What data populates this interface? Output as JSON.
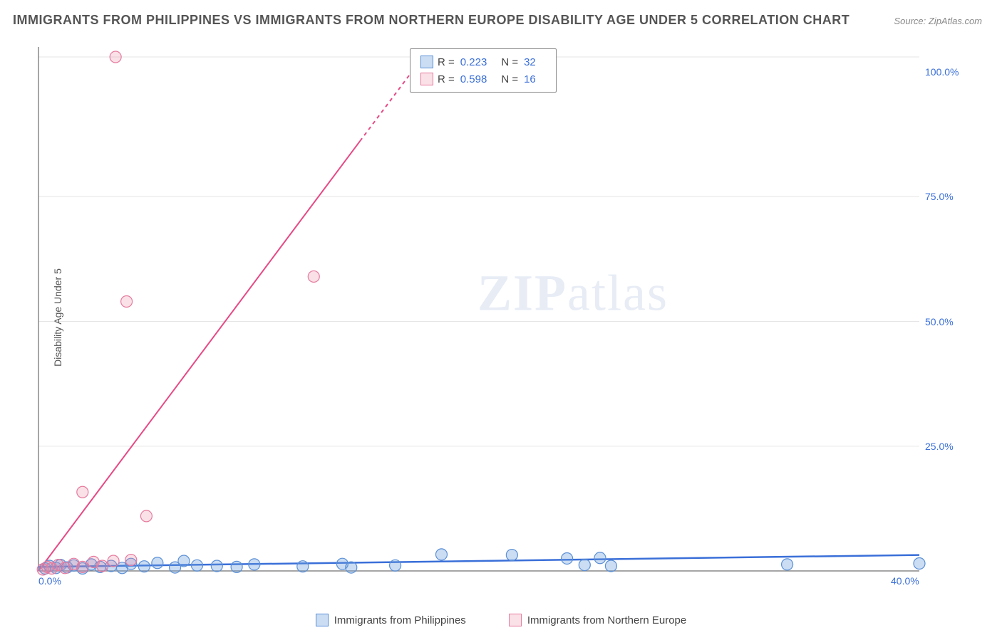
{
  "title": "IMMIGRANTS FROM PHILIPPINES VS IMMIGRANTS FROM NORTHERN EUROPE DISABILITY AGE UNDER 5 CORRELATION CHART",
  "source": "Source: ZipAtlas.com",
  "y_axis_label": "Disability Age Under 5",
  "watermark": {
    "bold": "ZIP",
    "rest": "atlas"
  },
  "chart": {
    "type": "scatter",
    "background_color": "#ffffff",
    "grid_color": "#e5e5e5",
    "axis_line_color": "#888888",
    "xlim": [
      0,
      40
    ],
    "ylim": [
      0,
      105
    ],
    "x_ticks": [
      {
        "value": 0,
        "label": "0.0%"
      },
      {
        "value": 40,
        "label": "40.0%"
      }
    ],
    "y_ticks": [
      {
        "value": 25,
        "label": "25.0%"
      },
      {
        "value": 50,
        "label": "50.0%"
      },
      {
        "value": 75,
        "label": "75.0%"
      },
      {
        "value": 100,
        "label": "100.0%"
      }
    ],
    "y_gridlines": [
      25,
      50,
      75,
      103
    ],
    "series": [
      {
        "name": "Immigrants from Philippines",
        "color_fill": "rgba(106,158,220,0.35)",
        "color_stroke": "#5a8fd6",
        "marker_radius": 8,
        "regression": {
          "slope": 0.06,
          "intercept": 0.8,
          "x0": 0,
          "x1": 40,
          "line_color": "#3a6fd8",
          "line_width": 2.5
        },
        "R": "0.223",
        "N": "32",
        "points": [
          [
            0.3,
            0.5
          ],
          [
            0.5,
            1.0
          ],
          [
            0.8,
            0.6
          ],
          [
            1.0,
            1.2
          ],
          [
            1.3,
            0.7
          ],
          [
            1.6,
            1.1
          ],
          [
            2.0,
            0.5
          ],
          [
            2.4,
            1.3
          ],
          [
            2.8,
            0.8
          ],
          [
            3.3,
            1.0
          ],
          [
            3.8,
            0.6
          ],
          [
            4.2,
            1.4
          ],
          [
            4.8,
            0.9
          ],
          [
            5.4,
            1.6
          ],
          [
            6.2,
            0.7
          ],
          [
            6.6,
            2.0
          ],
          [
            7.2,
            1.1
          ],
          [
            8.1,
            1.0
          ],
          [
            9.0,
            0.8
          ],
          [
            9.8,
            1.3
          ],
          [
            12.0,
            0.9
          ],
          [
            13.8,
            1.4
          ],
          [
            14.2,
            0.7
          ],
          [
            16.2,
            1.1
          ],
          [
            18.3,
            3.3
          ],
          [
            21.5,
            3.2
          ],
          [
            24.0,
            2.5
          ],
          [
            24.8,
            1.2
          ],
          [
            25.5,
            2.6
          ],
          [
            26.0,
            1.0
          ],
          [
            34.0,
            1.3
          ],
          [
            40.0,
            1.5
          ]
        ]
      },
      {
        "name": "Immigrants from Northern Europe",
        "color_fill": "rgba(235,130,160,0.25)",
        "color_stroke": "#e67a9e",
        "marker_radius": 8,
        "regression": {
          "slope": 5.9,
          "intercept": 0,
          "x0": 0,
          "x1": 17.6,
          "line_color": "#e64a85",
          "line_width": 2,
          "dashed_after_x": 14.6
        },
        "R": "0.598",
        "N": "16",
        "points": [
          [
            0.2,
            0.3
          ],
          [
            0.4,
            0.8
          ],
          [
            0.6,
            0.5
          ],
          [
            0.9,
            1.2
          ],
          [
            1.2,
            0.6
          ],
          [
            1.6,
            1.4
          ],
          [
            2.0,
            0.8
          ],
          [
            2.5,
            1.8
          ],
          [
            2.9,
            1.0
          ],
          [
            3.4,
            2.0
          ],
          [
            2.0,
            15.8
          ],
          [
            4.9,
            11.0
          ],
          [
            4.0,
            54.0
          ],
          [
            3.5,
            103.0
          ],
          [
            12.5,
            59.0
          ],
          [
            4.2,
            2.2
          ]
        ]
      }
    ]
  },
  "stats_legend": {
    "rows": [
      {
        "swatch_fill": "rgba(106,158,220,0.35)",
        "swatch_stroke": "#5a8fd6",
        "R_label": "R =",
        "R_value": "0.223",
        "N_label": "N =",
        "N_value": "32"
      },
      {
        "swatch_fill": "rgba(235,130,160,0.25)",
        "swatch_stroke": "#e67a9e",
        "R_label": "R =",
        "R_value": "0.598",
        "N_label": "N =",
        "N_value": "16"
      }
    ]
  },
  "bottom_legend": [
    {
      "swatch_fill": "rgba(106,158,220,0.35)",
      "swatch_stroke": "#5a8fd6",
      "label": "Immigrants from Philippines"
    },
    {
      "swatch_fill": "rgba(235,130,160,0.25)",
      "swatch_stroke": "#e67a9e",
      "label": "Immigrants from Northern Europe"
    }
  ]
}
